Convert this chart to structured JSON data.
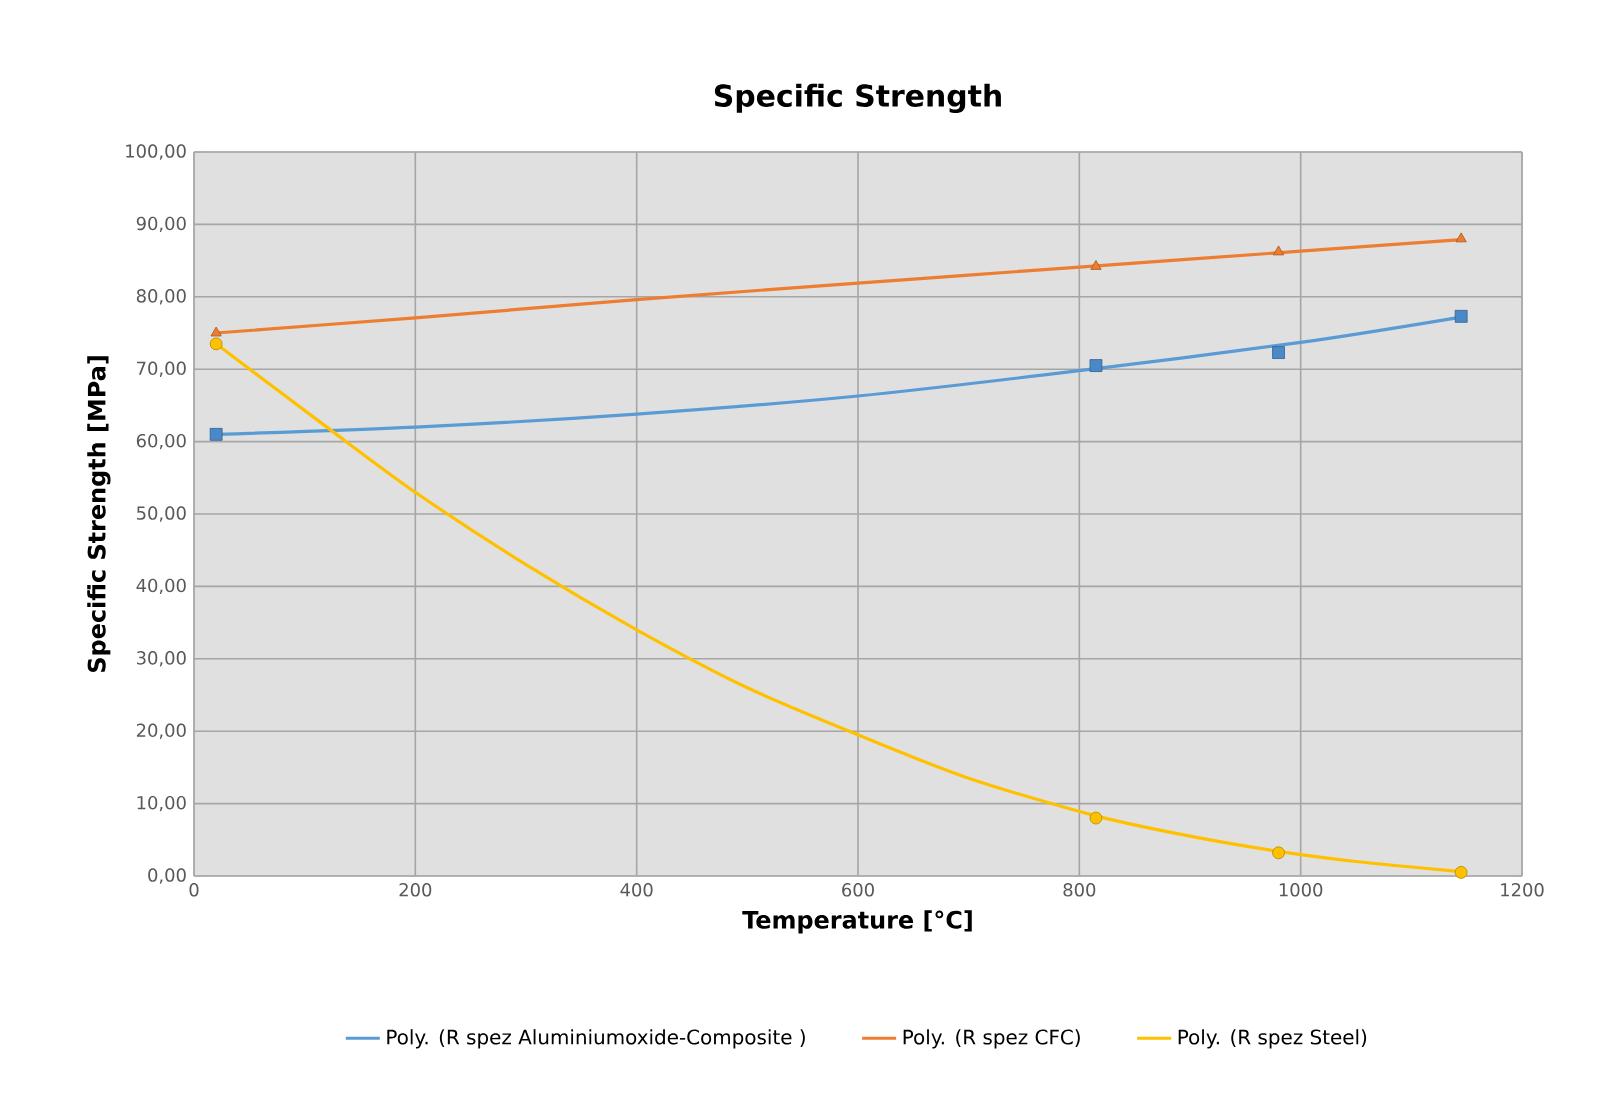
{
  "chart_data": {
    "type": "line",
    "title": "Specific Strength",
    "xlabel": "Temperature [°C]",
    "ylabel": "Specific Strength [MPa]",
    "xlim": [
      0,
      1200
    ],
    "xticks": [
      0,
      200,
      400,
      600,
      800,
      1000,
      1200
    ],
    "ylim": [
      0,
      100
    ],
    "yticks": [
      {
        "value": 0,
        "label": "0,00"
      },
      {
        "value": 10,
        "label": "10,00"
      },
      {
        "value": 20,
        "label": "20,00"
      },
      {
        "value": 30,
        "label": "30,00"
      },
      {
        "value": 40,
        "label": "40,00"
      },
      {
        "value": 50,
        "label": "50,00"
      },
      {
        "value": 60,
        "label": "60,00"
      },
      {
        "value": 70,
        "label": "70,00"
      },
      {
        "value": 80,
        "label": "80,00"
      },
      {
        "value": 90,
        "label": "90,00"
      },
      {
        "value": 100,
        "label": "100,00"
      }
    ],
    "grid": true,
    "legend": "bottom",
    "series": [
      {
        "name": "Poly. (R spez Aluminiumoxide-Composite )",
        "color": "#5b9bd5",
        "x": [
          20,
          200,
          400,
          600,
          800,
          1000,
          1145
        ],
        "values": [
          61.0,
          62.0,
          63.8,
          66.3,
          69.8,
          73.7,
          77.2
        ]
      },
      {
        "name": "Poly. (R spez CFC)",
        "color": "#ed7d31",
        "x": [
          20,
          200,
          400,
          600,
          800,
          1000,
          1145
        ],
        "values": [
          75.0,
          77.1,
          79.6,
          81.9,
          84.1,
          86.3,
          87.9
        ]
      },
      {
        "name": "Poly. (R spez Steel)",
        "color": "#ffc000",
        "x": [
          20,
          120,
          200,
          300,
          400,
          500,
          600,
          700,
          815,
          900,
          980,
          1050,
          1145
        ],
        "values": [
          73.5,
          62,
          53,
          43,
          34,
          26,
          19.5,
          13.5,
          8.3,
          5.5,
          3.4,
          2.0,
          0.6
        ]
      },
      {
        "type": "scatter",
        "color": "#4a89c8",
        "marker": "square",
        "x": [
          20,
          815,
          980,
          1145
        ],
        "values": [
          61.0,
          70.5,
          72.3,
          77.3
        ]
      },
      {
        "type": "scatter",
        "color": "#ed7d31",
        "marker": "triangle",
        "x": [
          20,
          815,
          980,
          1145
        ],
        "values": [
          75.0,
          84.2,
          86.2,
          88.0
        ]
      },
      {
        "type": "scatter",
        "color": "#ffc000",
        "marker": "circle",
        "x": [
          20,
          815,
          980,
          1145
        ],
        "values": [
          73.5,
          8.0,
          3.2,
          0.5
        ]
      }
    ]
  }
}
